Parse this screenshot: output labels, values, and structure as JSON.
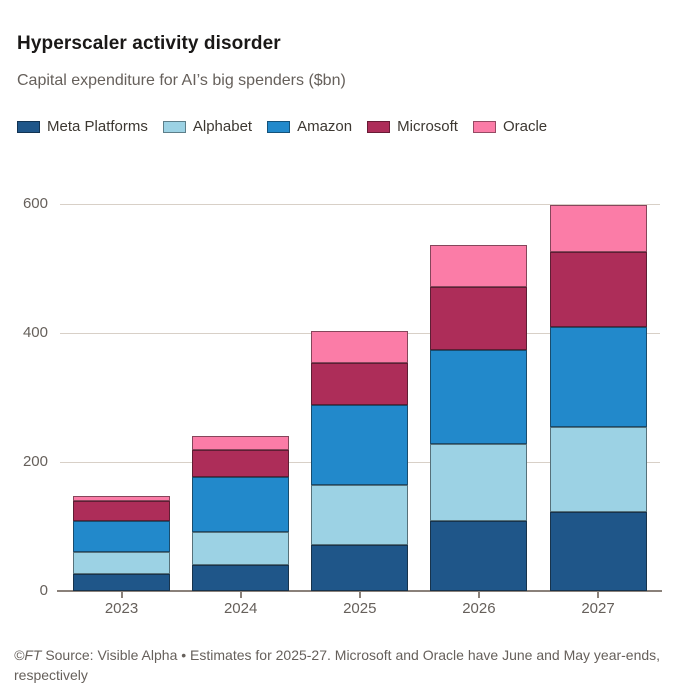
{
  "chart_data": {
    "type": "bar",
    "stacked": true,
    "title": "Hyperscaler activity disorder",
    "subtitle": "Capital expenditure for AI’s big spenders ($bn)",
    "categories": [
      "2023",
      "2024",
      "2025",
      "2026",
      "2027"
    ],
    "series": [
      {
        "name": "Meta Platforms",
        "color": "#1f5689",
        "values": [
          27,
          40,
          71,
          109,
          122
        ]
      },
      {
        "name": "Alphabet",
        "color": "#9cd2e4",
        "values": [
          33,
          52,
          93,
          119,
          133
        ]
      },
      {
        "name": "Amazon",
        "color": "#2289cb",
        "values": [
          49,
          84,
          125,
          146,
          154
        ]
      },
      {
        "name": "Microsoft",
        "color": "#ad2d59",
        "values": [
          31,
          43,
          64,
          97,
          116
        ]
      },
      {
        "name": "Oracle",
        "color": "#fb7ca7",
        "values": [
          8,
          22,
          50,
          65,
          74
        ]
      }
    ],
    "xlabel": "",
    "ylabel": "",
    "yticks": [
      0,
      200,
      400,
      600
    ],
    "ylim": [
      0,
      620
    ],
    "grid": true,
    "legend_position": "top"
  },
  "footer": {
    "copyright": "©FT",
    "text": "Source: Visible Alpha • Estimates for 2025-27. Microsoft and Oracle have June and May year-ends, respectively"
  },
  "style_colors": {
    "gridline": "#d8d0c7",
    "axis": "#8a817a",
    "muted_text": "#66605b",
    "title_text": "#1a1817"
  }
}
